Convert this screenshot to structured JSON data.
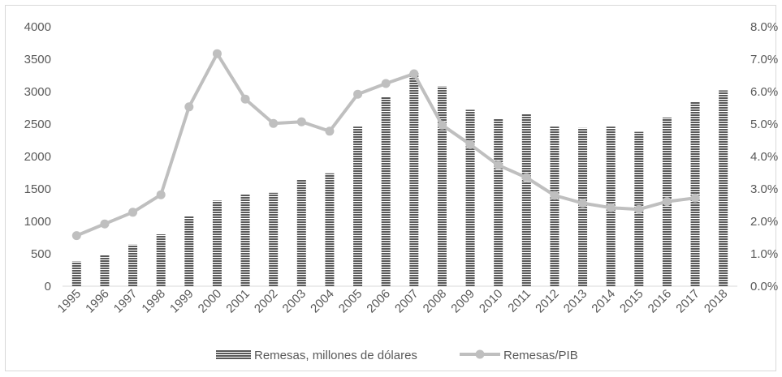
{
  "chart_data": {
    "type": "bar",
    "categories": [
      "1995",
      "1996",
      "1997",
      "1998",
      "1999",
      "2000",
      "2001",
      "2002",
      "2003",
      "2004",
      "2005",
      "2006",
      "2007",
      "2008",
      "2009",
      "2010",
      "2011",
      "2012",
      "2013",
      "2014",
      "2015",
      "2016",
      "2017",
      "2018"
    ],
    "series": [
      {
        "name": "Remesas, millones de dólares",
        "type": "bar",
        "axis": "left",
        "color": "#595959",
        "pattern": "horizontal-stripes",
        "values": [
          380,
          480,
          640,
          800,
          1080,
          1320,
          1420,
          1440,
          1640,
          1740,
          2460,
          2920,
          3290,
          3080,
          2720,
          2580,
          2660,
          2460,
          2440,
          2460,
          2380,
          2600,
          2840,
          3020
        ]
      },
      {
        "name": "Remesas/PIB",
        "type": "line",
        "axis": "right",
        "color": "#bfbfbf",
        "marker": "circle",
        "values": [
          1.56,
          1.92,
          2.28,
          2.82,
          5.53,
          7.17,
          5.77,
          5.02,
          5.07,
          4.78,
          5.92,
          6.25,
          6.55,
          4.97,
          4.37,
          3.73,
          3.35,
          2.8,
          2.56,
          2.42,
          2.37,
          2.61,
          2.72,
          null
        ]
      }
    ],
    "y_left": {
      "ylim": [
        0,
        4000
      ],
      "ticks": [
        "0",
        "500",
        "1000",
        "1500",
        "2000",
        "2500",
        "3000",
        "3500",
        "4000"
      ]
    },
    "y_right": {
      "ylim": [
        0,
        8
      ],
      "ticks": [
        "0.0%",
        "1.0%",
        "2.0%",
        "3.0%",
        "4.0%",
        "5.0%",
        "6.0%",
        "7.0%",
        "8.0%"
      ]
    },
    "grid": false,
    "legend_position": "bottom"
  }
}
